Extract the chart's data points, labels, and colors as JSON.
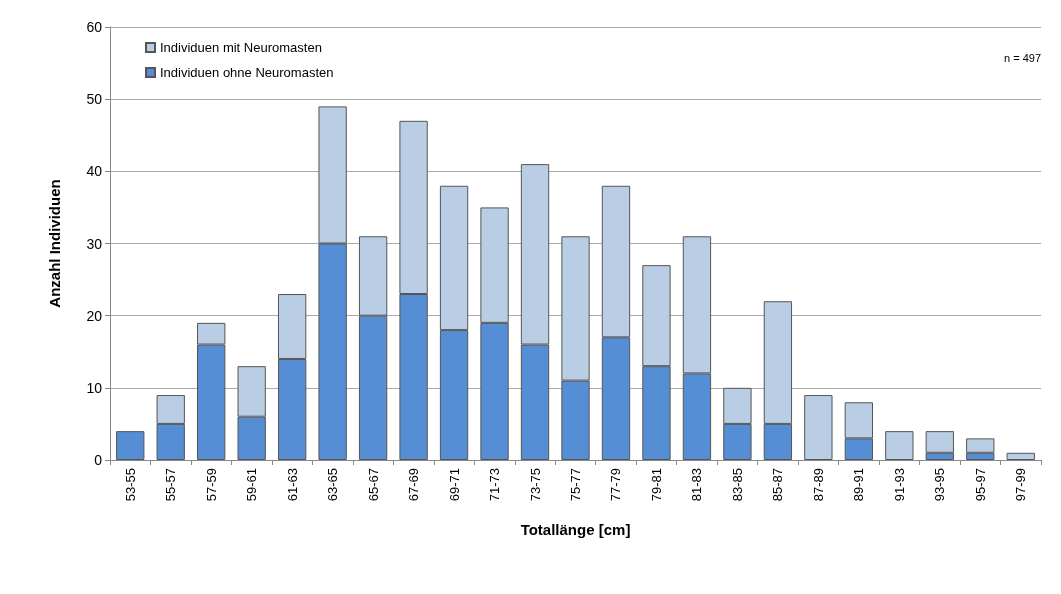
{
  "chart_data": {
    "type": "bar",
    "xlabel": "Totallänge [cm]",
    "ylabel": "Anzahl Individuen",
    "categories": [
      "53-55",
      "55-57",
      "57-59",
      "59-61",
      "61-63",
      "63-65",
      "65-67",
      "67-69",
      "69-71",
      "71-73",
      "73-75",
      "75-77",
      "77-79",
      "79-81",
      "81-83",
      "83-85",
      "85-87",
      "87-89",
      "89-91",
      "91-93",
      "93-95",
      "95-97",
      "97-99"
    ],
    "series": [
      {
        "name": "Individuen ohne Neuromasten",
        "color": "#558ed5",
        "values": [
          4,
          5,
          16,
          6,
          14,
          30,
          20,
          23,
          18,
          19,
          16,
          11,
          17,
          13,
          12,
          5,
          5,
          0,
          3,
          0,
          1,
          1,
          0
        ]
      },
      {
        "name": "Individuen mit Neuromasten",
        "color": "#b9cde5",
        "values": [
          0,
          4,
          3,
          7,
          9,
          19,
          11,
          24,
          20,
          16,
          25,
          20,
          21,
          14,
          19,
          5,
          17,
          9,
          5,
          4,
          3,
          2,
          1
        ]
      }
    ],
    "stacked": true,
    "ylim": [
      0,
      60
    ],
    "yticks": [
      0,
      10,
      20,
      30,
      40,
      50,
      60
    ],
    "grid": "y",
    "legend": "top left",
    "annotations": [
      "n = 497"
    ]
  }
}
